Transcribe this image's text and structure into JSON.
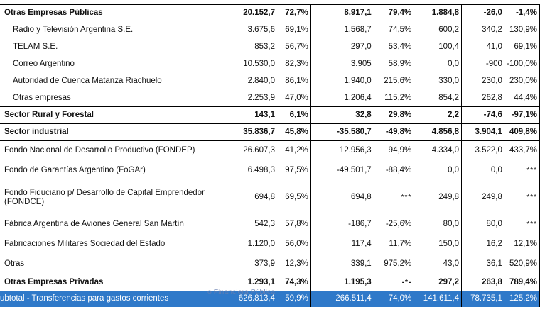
{
  "columns_count": 7,
  "rows": [
    {
      "kind": "bold",
      "name": "Otras Empresas Públicas",
      "v": [
        "20.152,7",
        "72,7%",
        "8.917,1",
        "79,4%",
        "1.884,8",
        "-26,0",
        "-1,4%"
      ]
    },
    {
      "kind": "sub",
      "name": "Radio y Televisión Argentina S.E.",
      "v": [
        "3.675,6",
        "69,1%",
        "1.568,7",
        "74,5%",
        "600,2",
        "340,2",
        "130,9%"
      ]
    },
    {
      "kind": "sub",
      "name": "TELAM S.E.",
      "v": [
        "853,2",
        "56,7%",
        "297,0",
        "53,4%",
        "100,4",
        "41,0",
        "69,1%"
      ]
    },
    {
      "kind": "sub",
      "name": "Correo Argentino",
      "v": [
        "10.530,0",
        "82,3%",
        "3.905",
        "58,9%",
        "0,0",
        "-900",
        "-100,0%"
      ]
    },
    {
      "kind": "sub",
      "name": "Autoridad de Cuenca Matanza Riachuelo",
      "v": [
        "2.840,0",
        "86,1%",
        "1.940,0",
        "215,6%",
        "330,0",
        "230,0",
        "230,0%"
      ]
    },
    {
      "kind": "sub",
      "name": "Otras empresas",
      "v": [
        "2.253,9",
        "47,0%",
        "1.206,4",
        "115,2%",
        "854,2",
        "262,8",
        "44,4%"
      ]
    },
    {
      "kind": "bold",
      "name": "Sector Rural y Forestal",
      "v": [
        "143,1",
        "6,1%",
        "32,8",
        "29,8%",
        "2,2",
        "-74,6",
        "-97,1%"
      ]
    },
    {
      "kind": "bold",
      "name": "Sector industrial",
      "v": [
        "35.836,7",
        "45,8%",
        "-35.580,7",
        "-49,8%",
        "4.856,8",
        "3.904,1",
        "409,8%"
      ]
    },
    {
      "kind": "plain",
      "name": "Fondo Nacional de Desarrollo Productivo (FONDEP)",
      "v": [
        "26.607,3",
        "41,2%",
        "12.956,3",
        "94,9%",
        "4.334,0",
        "3.522,0",
        "433,7%"
      ]
    },
    {
      "kind": "plain",
      "name": "Fondo de Garantías Argentino (FoGAr)",
      "v": [
        "6.498,3",
        "97,5%",
        "-49.501,7",
        "-88,4%",
        "0,0",
        "0,0",
        "***"
      ]
    },
    {
      "kind": "plain2",
      "name": "Fondo Fiduciario p/ Desarrollo de Capital Emprendedor (FONDCE)",
      "v": [
        "694,8",
        "69,5%",
        "694,8",
        "***",
        "249,8",
        "249,8",
        "***"
      ]
    },
    {
      "kind": "plain",
      "name": "Fábrica Argentina de Aviones General San Martín",
      "v": [
        "542,3",
        "57,8%",
        "-186,7",
        "-25,6%",
        "80,0",
        "80,0",
        "***"
      ]
    },
    {
      "kind": "plain",
      "name": "Fabricaciones Militares Sociedad del Estado",
      "v": [
        "1.120,0",
        "56,0%",
        "117,4",
        "11,7%",
        "150,0",
        "16,2",
        "12,1%"
      ]
    },
    {
      "kind": "plain",
      "name": "Otras",
      "v": [
        "373,9",
        "12,3%",
        "339,1",
        "975,2%",
        "43,0",
        "36,1",
        "520,9%"
      ]
    },
    {
      "kind": "bold",
      "name": "Otras Empresas Privadas",
      "v": [
        "1.293,1",
        "74,3%",
        "1.195,3",
        "-*-",
        "297,2",
        "263,8",
        "789,4%"
      ]
    },
    {
      "kind": "total",
      "name": "ubtotal - Transferencias para gastos corrientes",
      "v": [
        "626.813,4",
        "59,9%",
        "266.511,4",
        "74,0%",
        "141.611,4",
        "78.735,1",
        "125,2%"
      ]
    }
  ],
  "watermark": "o Financiera Pública",
  "colors": {
    "total_bg": "#2f79c9",
    "total_text": "#ffffff",
    "rule": "#000000"
  }
}
